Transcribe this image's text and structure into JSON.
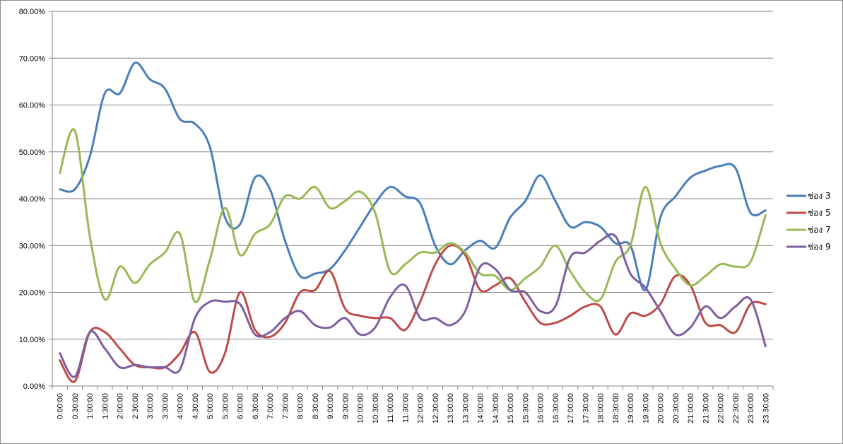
{
  "chart_data": {
    "type": "line",
    "title": "",
    "xlabel": "",
    "ylabel": "",
    "ylim": [
      0,
      80
    ],
    "y_ticks": [
      "0.00%",
      "10.00%",
      "20.00%",
      "30.00%",
      "40.00%",
      "50.00%",
      "60.00%",
      "70.00%",
      "80.00%"
    ],
    "grid": "horizontal",
    "legend_position": "right",
    "x": [
      "0:00:00",
      "0:30:00",
      "1:00:00",
      "1:30:00",
      "2:00:00",
      "2:30:00",
      "3:00:00",
      "3:30:00",
      "4:00:00",
      "4:30:00",
      "5:00:00",
      "5:30:00",
      "6:00:00",
      "6:30:00",
      "7:00:00",
      "7:30:00",
      "8:00:00",
      "8:30:00",
      "9:00:00",
      "9:30:00",
      "10:00:00",
      "10:30:00",
      "11:00:00",
      "11:30:00",
      "12:00:00",
      "12:30:00",
      "13:00:00",
      "13:30:00",
      "14:00:00",
      "14:30:00",
      "15:00:00",
      "15:30:00",
      "16:00:00",
      "16:30:00",
      "17:00:00",
      "17:30:00",
      "18:00:00",
      "18:30:00",
      "19:00:00",
      "19:30:00",
      "20:00:00",
      "20:30:00",
      "21:00:00",
      "21:30:00",
      "22:00:00",
      "22:30:00",
      "23:00:00",
      "23:30:00"
    ],
    "series": [
      {
        "name": "ช่อง 3",
        "color": "#4a7ebb",
        "values": [
          42,
          42,
          49,
          62.5,
          62.5,
          69,
          65.5,
          63.5,
          57,
          56,
          51,
          36,
          34.5,
          44.5,
          42,
          31,
          23.5,
          24,
          25,
          29,
          34,
          39,
          42.5,
          40.5,
          39,
          30,
          26,
          29,
          31,
          29.5,
          36,
          39.5,
          45,
          39.5,
          34,
          35,
          34,
          30.5,
          30,
          20.5,
          36,
          40.5,
          44.5,
          46,
          47,
          46.5,
          37,
          37.5
        ]
      },
      {
        "name": "ช่อง 5",
        "color": "#be4b48",
        "values": [
          5.5,
          1,
          11.5,
          11.5,
          8,
          4.5,
          4,
          4,
          7,
          11.5,
          3,
          7,
          20,
          12,
          10.5,
          13.5,
          20,
          20.5,
          24.5,
          16.5,
          15,
          14.5,
          14.5,
          12,
          18,
          26,
          30,
          28,
          20.5,
          21.5,
          23,
          18,
          13.5,
          13.5,
          15,
          17,
          17,
          11,
          15.5,
          15,
          17.5,
          23.5,
          21.5,
          13.5,
          13,
          11.5,
          17.5,
          17.5
        ]
      },
      {
        "name": "ช่อง 7",
        "color": "#98b954",
        "values": [
          45.5,
          54.5,
          32,
          18.5,
          25.5,
          22,
          26,
          28.5,
          32.5,
          18,
          27,
          38,
          28,
          32.5,
          34.5,
          40.5,
          40,
          42.5,
          38,
          39.5,
          41.5,
          37,
          24.5,
          26,
          28.5,
          28.5,
          30.5,
          28.5,
          24,
          23.5,
          20.5,
          23,
          25.5,
          30,
          24.5,
          20,
          18.5,
          26.5,
          30,
          42.5,
          30.5,
          25,
          21.5,
          23.5,
          26,
          25.5,
          26.5,
          36.5
        ]
      },
      {
        "name": "ช่อง 9",
        "color": "#7d5fa0",
        "values": [
          7,
          2,
          11.5,
          8,
          4,
          4.5,
          4,
          4,
          3.5,
          14.5,
          18,
          18,
          17.5,
          11,
          11.5,
          14.5,
          16,
          13,
          12.5,
          14.5,
          11,
          12.5,
          19,
          21.5,
          14.5,
          14.5,
          13,
          16,
          25.5,
          25,
          20.5,
          20,
          16,
          17,
          27.5,
          28.5,
          31,
          32,
          24,
          21,
          16,
          11,
          12.5,
          17,
          14.5,
          17,
          18.5,
          8.5
        ]
      }
    ]
  }
}
